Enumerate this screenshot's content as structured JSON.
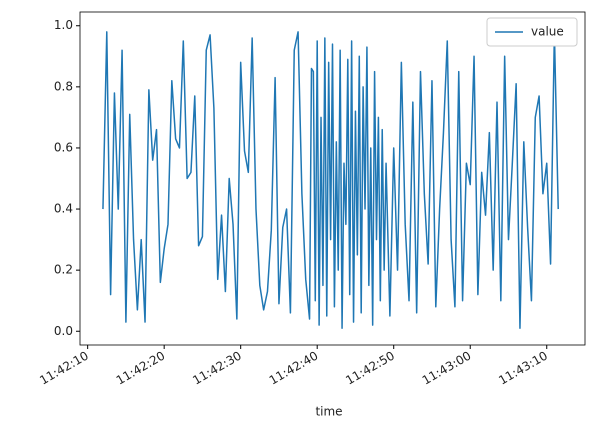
{
  "chart_data": {
    "type": "line",
    "xlabel": "time",
    "x": [
      "11:42:12",
      "11:42:12.5",
      "11:42:13",
      "11:42:13.5",
      "11:42:14",
      "11:42:14.5",
      "11:42:15",
      "11:42:15.5",
      "11:42:16",
      "11:42:16.5",
      "11:42:17",
      "11:42:17.5",
      "11:42:18",
      "11:42:18.5",
      "11:42:19",
      "11:42:19.5",
      "11:42:20",
      "11:42:20.5",
      "11:42:21",
      "11:42:21.5",
      "11:42:22",
      "11:42:22.5",
      "11:42:23",
      "11:42:23.5",
      "11:42:24",
      "11:42:24.5",
      "11:42:25",
      "11:42:25.5",
      "11:42:26",
      "11:42:26.5",
      "11:42:27",
      "11:42:27.5",
      "11:42:28",
      "11:42:28.5",
      "11:42:29",
      "11:42:29.5",
      "11:42:30",
      "11:42:30.5",
      "11:42:31",
      "11:42:31.5",
      "11:42:32",
      "11:42:32.5",
      "11:42:33",
      "11:42:33.5",
      "11:42:34",
      "11:42:34.5",
      "11:42:35",
      "11:42:35.5",
      "11:42:36",
      "11:42:36.5",
      "11:42:37",
      "11:42:37.5",
      "11:42:38",
      "11:42:38.5",
      "11:42:39",
      "11:42:39.25",
      "11:42:39.5",
      "11:42:39.75",
      "11:42:40",
      "11:42:40.25",
      "11:42:40.5",
      "11:42:40.75",
      "11:42:41",
      "11:42:41.25",
      "11:42:41.5",
      "11:42:41.75",
      "11:42:42",
      "11:42:42.25",
      "11:42:42.5",
      "11:42:42.75",
      "11:42:43",
      "11:42:43.25",
      "11:42:43.5",
      "11:42:43.75",
      "11:42:44",
      "11:42:44.25",
      "11:42:44.5",
      "11:42:44.75",
      "11:42:45",
      "11:42:45.25",
      "11:42:45.5",
      "11:42:45.75",
      "11:42:46",
      "11:42:46.25",
      "11:42:46.5",
      "11:42:46.75",
      "11:42:47",
      "11:42:47.25",
      "11:42:47.5",
      "11:42:47.75",
      "11:42:48",
      "11:42:48.25",
      "11:42:48.5",
      "11:42:48.75",
      "11:42:49",
      "11:42:49.5",
      "11:42:50",
      "11:42:50.5",
      "11:42:51",
      "11:42:51.5",
      "11:42:52",
      "11:42:52.5",
      "11:42:53",
      "11:42:53.5",
      "11:42:54",
      "11:42:54.5",
      "11:42:55",
      "11:42:55.5",
      "11:42:56",
      "11:42:56.5",
      "11:42:57",
      "11:42:57.5",
      "11:42:58",
      "11:42:58.5",
      "11:42:59",
      "11:42:59.5",
      "11:43:00",
      "11:43:00.5",
      "11:43:01",
      "11:43:01.5",
      "11:43:02",
      "11:43:02.5",
      "11:43:03",
      "11:43:03.5",
      "11:43:04",
      "11:43:04.5",
      "11:43:05",
      "11:43:05.5",
      "11:43:06",
      "11:43:06.5",
      "11:43:07",
      "11:43:07.5",
      "11:43:08",
      "11:43:08.5",
      "11:43:09",
      "11:43:09.5",
      "11:43:10",
      "11:43:10.5",
      "11:43:11",
      "11:43:11.5"
    ],
    "series": [
      {
        "name": "value",
        "color": "#1f77b4",
        "values": [
          0.4,
          0.98,
          0.12,
          0.78,
          0.4,
          0.92,
          0.03,
          0.71,
          0.3,
          0.07,
          0.3,
          0.03,
          0.79,
          0.56,
          0.66,
          0.16,
          0.27,
          0.35,
          0.82,
          0.63,
          0.6,
          0.95,
          0.5,
          0.52,
          0.77,
          0.28,
          0.31,
          0.92,
          0.97,
          0.73,
          0.17,
          0.38,
          0.13,
          0.5,
          0.35,
          0.04,
          0.88,
          0.59,
          0.52,
          0.96,
          0.4,
          0.15,
          0.07,
          0.13,
          0.33,
          0.83,
          0.09,
          0.34,
          0.4,
          0.06,
          0.92,
          0.98,
          0.45,
          0.17,
          0.04,
          0.86,
          0.85,
          0.1,
          0.95,
          0.02,
          0.7,
          0.15,
          0.96,
          0.05,
          0.88,
          0.3,
          0.94,
          0.08,
          0.62,
          0.2,
          0.92,
          0.01,
          0.55,
          0.35,
          0.89,
          0.12,
          0.95,
          0.03,
          0.72,
          0.25,
          0.9,
          0.06,
          0.8,
          0.4,
          0.93,
          0.15,
          0.6,
          0.02,
          0.85,
          0.3,
          0.7,
          0.1,
          0.66,
          0.2,
          0.55,
          0.05,
          0.6,
          0.2,
          0.88,
          0.35,
          0.1,
          0.75,
          0.06,
          0.85,
          0.45,
          0.22,
          0.82,
          0.08,
          0.4,
          0.65,
          0.95,
          0.3,
          0.08,
          0.85,
          0.1,
          0.55,
          0.48,
          0.9,
          0.12,
          0.52,
          0.38,
          0.65,
          0.2,
          0.75,
          0.1,
          0.9,
          0.3,
          0.55,
          0.81,
          0.01,
          0.62,
          0.34,
          0.1,
          0.7,
          0.77,
          0.45,
          0.55,
          0.22,
          0.98,
          0.4
        ]
      }
    ],
    "xlim": [
      "11:42:09",
      "11:43:15"
    ],
    "xticks": [
      "11:42:10",
      "11:42:20",
      "11:42:30",
      "11:42:40",
      "11:42:50",
      "11:43:00",
      "11:43:10"
    ],
    "ylim": [
      -0.045,
      1.045
    ],
    "yticks": [
      {
        "value": 0,
        "label": "0.0"
      },
      {
        "value": 0.2,
        "label": "0.2"
      },
      {
        "value": 0.4,
        "label": "0.4"
      },
      {
        "value": 0.6,
        "label": "0.6"
      },
      {
        "value": 0.8,
        "label": "0.8"
      },
      {
        "value": 1,
        "label": "1.0"
      }
    ],
    "legend": "upper right"
  }
}
